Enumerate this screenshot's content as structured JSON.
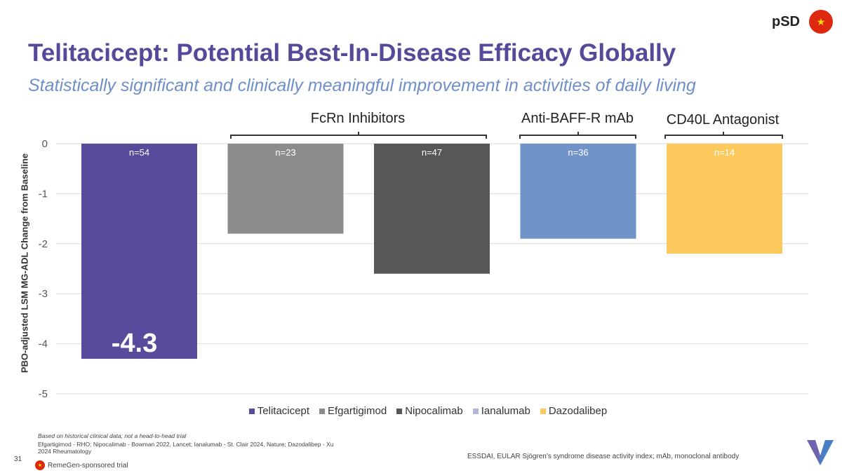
{
  "header": {
    "tag": "pSD",
    "flag_icon": "china-flag-icon",
    "title": "Telitacicept: Potential Best-In-Disease Efficacy Globally",
    "subtitle": "Statistically significant and clinically meaningful improvement in activities of daily living"
  },
  "groups": {
    "fcrn": "FcRn Inhibitors",
    "baff": "Anti-BAFF-R mAb",
    "cd40l": "CD40L Antagonist"
  },
  "chart_data": {
    "type": "bar",
    "title": "",
    "ylabel": "PBO-adjusted LSM MG-ADL Change from Baseline",
    "xlabel": "",
    "ylim": [
      -5,
      0
    ],
    "yticks": [
      "0",
      "-1",
      "-2",
      "-3",
      "-4",
      "-5"
    ],
    "grid": true,
    "categories": [
      "Telitacicept",
      "Efgartigimod",
      "Nipocalimab",
      "Ianalumab",
      "Dazodalibep"
    ],
    "values": [
      -4.3,
      -1.8,
      -2.6,
      -1.9,
      -2.2
    ],
    "n_labels": [
      "n=54",
      "n=23",
      "n=47",
      "n=36",
      "n=14"
    ],
    "colors": [
      "#574b9c",
      "#8c8c8c",
      "#575757",
      "#7093c9",
      "#fec95c"
    ],
    "legend_colors": [
      "#574b9c",
      "#8c8c8c",
      "#575757",
      "#b4b4d8",
      "#fec95c"
    ],
    "highlight_label": "-4.3",
    "legend_position": "bottom"
  },
  "footer": {
    "note": "Based on historical clinical data; not a head-to-head trial",
    "refs": "Efgartigimod - RHO; Nipocalimab - Bowman 2022, Lancet; Ianalumab - St. Clair 2024, Nature; Dazodalibep - Xu 2024 Rheumatology",
    "page": "31",
    "sponsor": "RemeGen-sponsored trial",
    "abbreviations": "ESSDAI, EULAR Sjögren’s syndrome disease activity index; mAb, monoclonal antibody"
  }
}
